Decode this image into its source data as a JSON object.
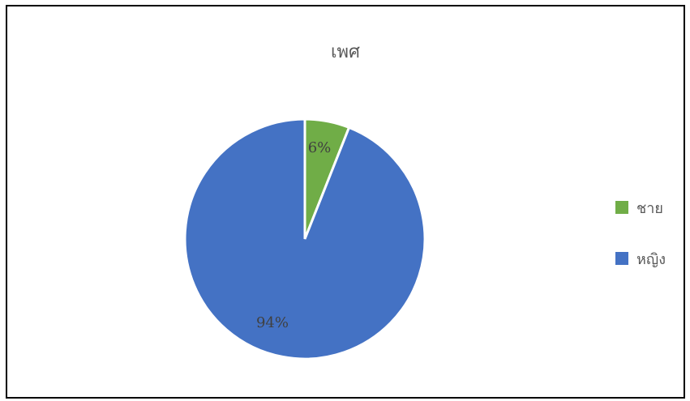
{
  "chart_data": {
    "type": "pie",
    "title": "เพศ",
    "categories": [
      "ชาย",
      "หญิง"
    ],
    "values": [
      6,
      94
    ],
    "labels": [
      "6%",
      "94%"
    ],
    "colors": [
      "#70AD47",
      "#4472C4"
    ],
    "legend": "right"
  },
  "legend": [
    {
      "label": "ชาย",
      "color": "#70AD47"
    },
    {
      "label": "หญิง",
      "color": "#4472C4"
    }
  ]
}
